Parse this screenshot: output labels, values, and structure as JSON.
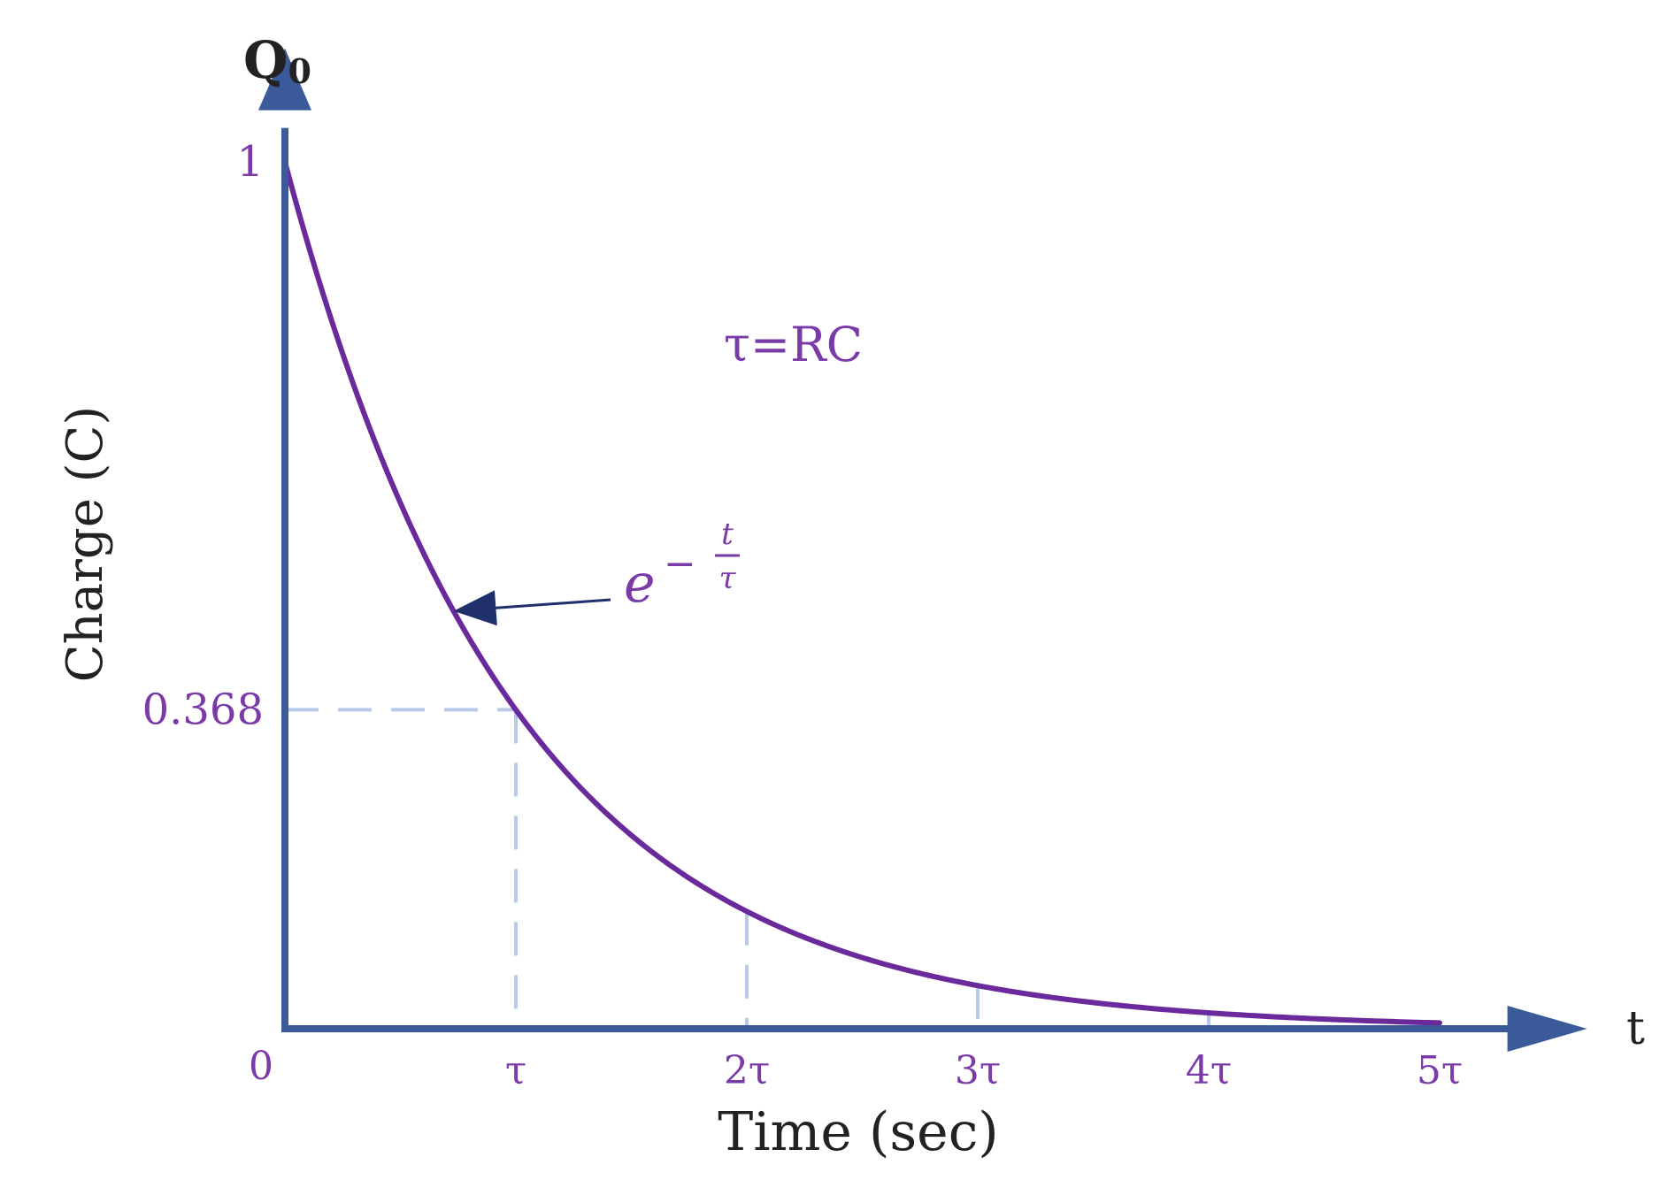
{
  "chart_data": {
    "type": "line",
    "xlabel": "Time (sec)",
    "ylabel": "Charge (C)",
    "y_axis_end_label": "Q",
    "y_axis_end_subscript": "0",
    "x_axis_end_label": "t",
    "xlim": [
      0,
      5.6
    ],
    "ylim": [
      0,
      1.08
    ],
    "origin_label": "0",
    "x_ticks": [
      {
        "value": 1,
        "label": "τ"
      },
      {
        "value": 2,
        "label": "2τ"
      },
      {
        "value": 3,
        "label": "3τ"
      },
      {
        "value": 4,
        "label": "4τ"
      },
      {
        "value": 5,
        "label": "5τ"
      }
    ],
    "y_ticks": [
      {
        "value": 1,
        "label": "1"
      },
      {
        "value": 0.368,
        "label": "0.368"
      }
    ],
    "series": [
      {
        "function": "exp(-t/τ)",
        "x_start": 0,
        "x_end": 5,
        "color": "#6a2a9c"
      }
    ],
    "reference_lines": [
      {
        "type": "horizontal",
        "y": 0.368,
        "x_end": 1
      },
      {
        "type": "vertical",
        "x": 1,
        "y_end": 0.368
      },
      {
        "type": "vertical",
        "x": 2,
        "y_end": 0.135
      },
      {
        "type": "vertical",
        "x": 3,
        "y_end": 0.05
      },
      {
        "type": "vertical",
        "x": 4,
        "y_end": 0.018
      }
    ],
    "annotations": {
      "formula_text": "τ=RC",
      "curve_label_base": "e",
      "curve_label_sign": "−",
      "curve_label_num": "t",
      "curve_label_den": "τ",
      "curve_label_arrow_target_x": 0.73
    },
    "colors": {
      "axis": "#3a5a9a",
      "curve": "#6a2a9c",
      "labels": "#7a3aa8",
      "dashed": "#b8c8e8",
      "arrow": "#1f2f6a",
      "title": "#222222"
    }
  }
}
